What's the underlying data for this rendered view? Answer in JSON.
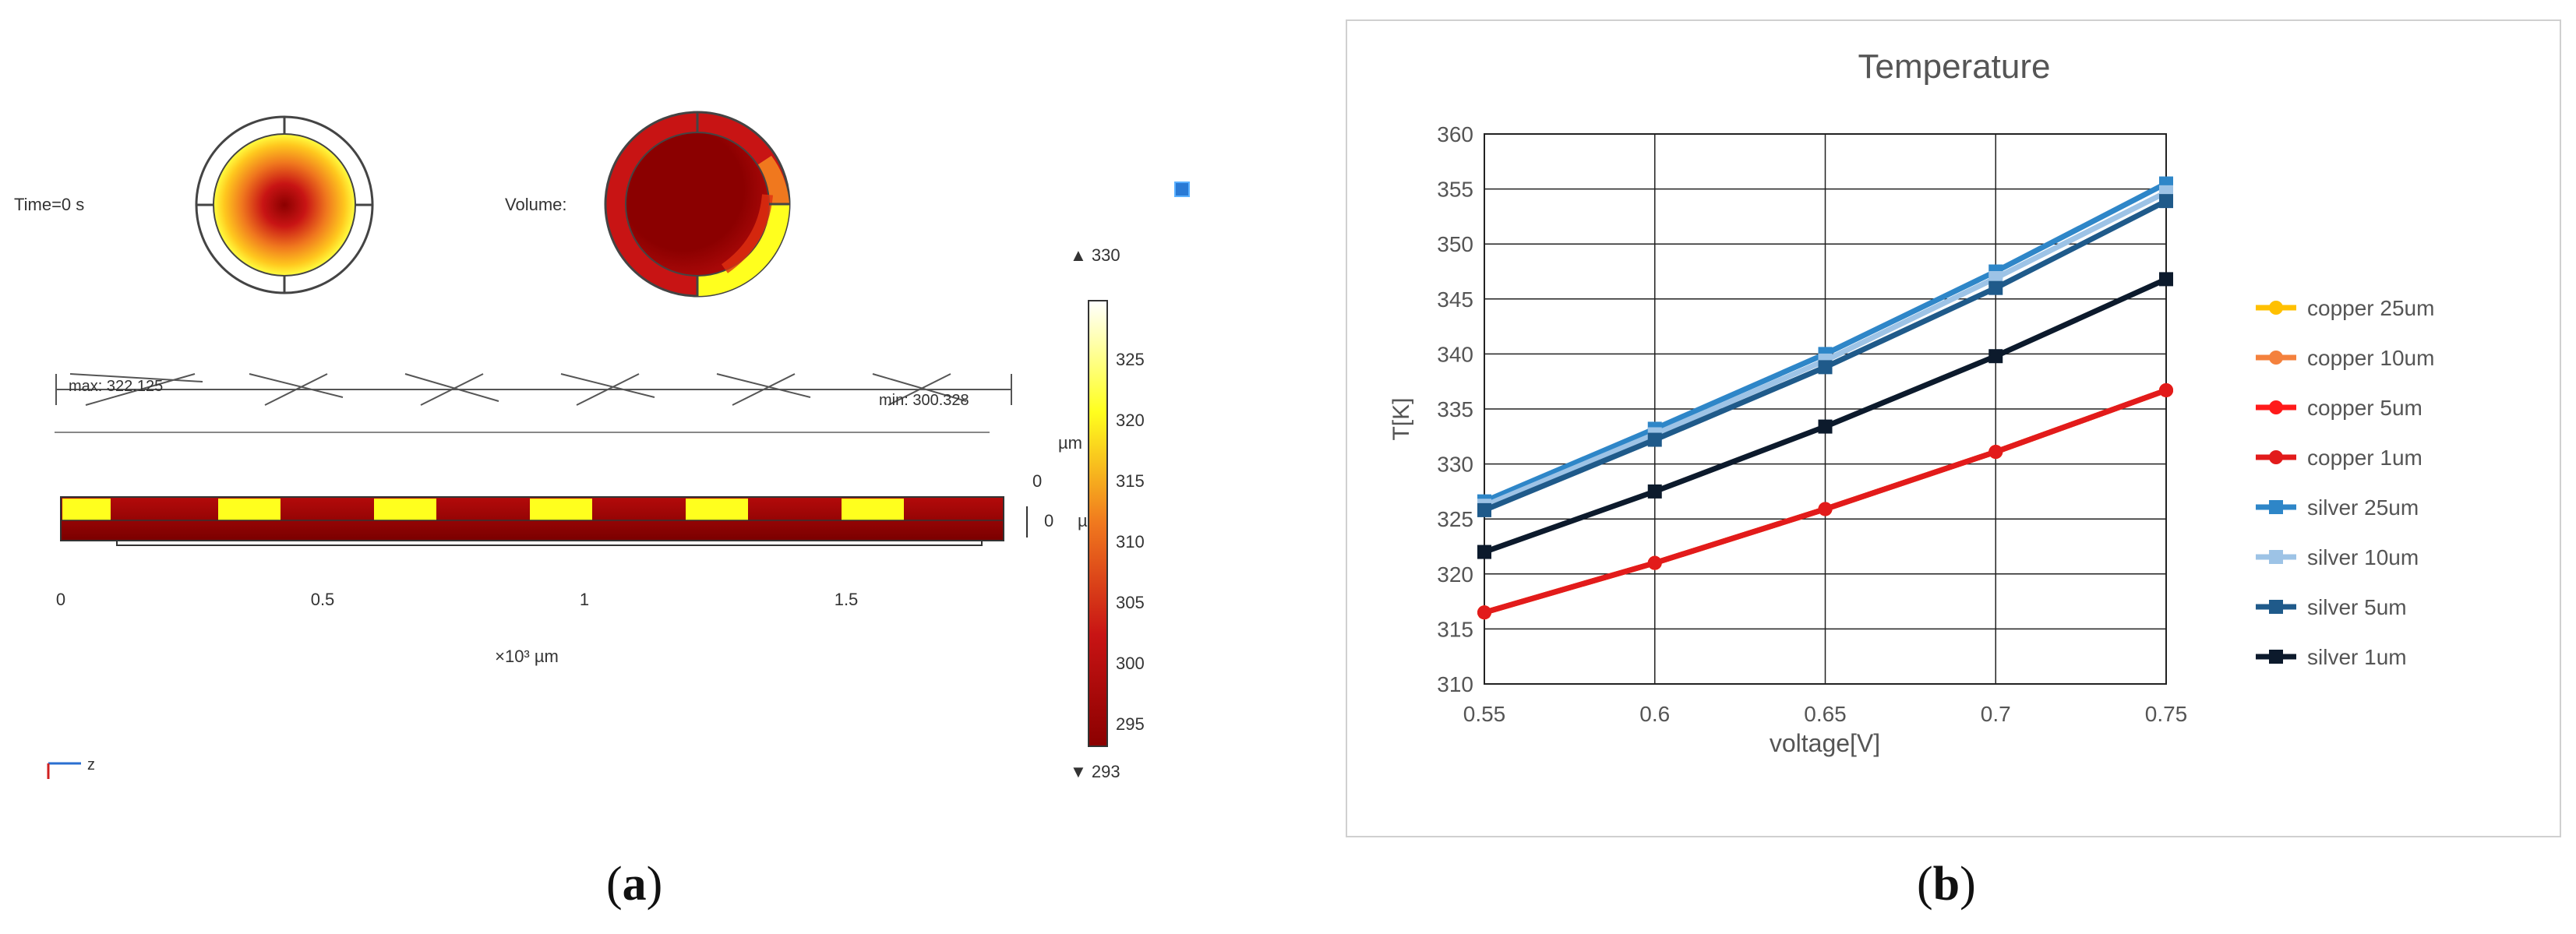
{
  "captions": {
    "a_prefix": "(",
    "a_letter": "a",
    "a_suffix": ")",
    "b_prefix": "(",
    "b_letter": "b",
    "b_suffix": ")"
  },
  "panel_a": {
    "time_label": "Time=0 s",
    "volume_label": "Volume:",
    "max_label": "max: 322.125",
    "min_label": "min: 300.328",
    "x_axis_ticks": [
      "0",
      "0.5",
      "1",
      "1.5"
    ],
    "x_axis_unit": "×10³ µm",
    "side_ticks": [
      "0",
      "0"
    ],
    "side_units": [
      "µm",
      "µ"
    ],
    "colorbar": {
      "max_label": "▲ 330",
      "min_label": "▼ 293",
      "ticks": [
        "325",
        "320",
        "315",
        "310",
        "305",
        "300",
        "295"
      ]
    },
    "axis_triad_label": "z",
    "colors": {
      "dark_red": "#8b0000",
      "red": "#c81414",
      "orange": "#f0781e",
      "yellow": "#ffff1e"
    }
  },
  "chart_data": {
    "type": "line",
    "title": "Temperature",
    "xlabel": "voltage[V]",
    "ylabel": "T[K]",
    "x": [
      0.55,
      0.6,
      0.65,
      0.7,
      0.75
    ],
    "x_tick_labels": [
      "0.55",
      "0.6",
      "0.65",
      "0.7",
      "0.75"
    ],
    "xlim": [
      0.55,
      0.75
    ],
    "ylim": [
      310,
      360
    ],
    "y_ticks": [
      "310",
      "315",
      "320",
      "325",
      "330",
      "335",
      "340",
      "345",
      "350",
      "355",
      "360"
    ],
    "grid": true,
    "legend_position": "right",
    "series": [
      {
        "name": "copper 25um",
        "color": "#ffc000",
        "marker": "circle",
        "values": [
          316.5,
          321.0,
          325.9,
          331.1,
          336.7
        ]
      },
      {
        "name": "copper 10um",
        "color": "#f4813d",
        "marker": "circle",
        "values": [
          316.5,
          321.0,
          325.9,
          331.1,
          336.7
        ]
      },
      {
        "name": "copper 5um",
        "color": "#ff1a1a",
        "marker": "circle",
        "values": [
          316.5,
          321.0,
          325.9,
          331.1,
          336.7
        ]
      },
      {
        "name": "copper 1um",
        "color": "#e21b1b",
        "marker": "circle",
        "values": [
          316.5,
          321.0,
          325.9,
          331.1,
          336.7
        ]
      },
      {
        "name": "silver 25um",
        "color": "#2e86c8",
        "marker": "square",
        "values": [
          326.6,
          333.2,
          340.0,
          347.5,
          355.5
        ]
      },
      {
        "name": "silver 10um",
        "color": "#9dc3e6",
        "marker": "square",
        "values": [
          326.2,
          332.7,
          339.4,
          346.9,
          354.7
        ]
      },
      {
        "name": "silver 5um",
        "color": "#1f5a8a",
        "marker": "square",
        "values": [
          325.8,
          332.2,
          338.8,
          346.0,
          353.9
        ]
      },
      {
        "name": "silver 1um",
        "color": "#0c1a2c",
        "marker": "square",
        "values": [
          322.0,
          327.5,
          333.4,
          339.8,
          346.8
        ]
      }
    ]
  }
}
